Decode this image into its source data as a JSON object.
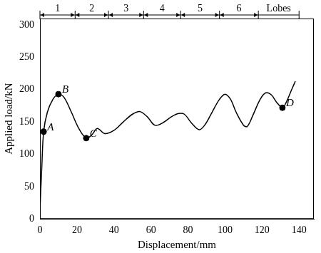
{
  "chart_data": {
    "type": "line",
    "x_label": "Displacement/mm",
    "y_label": "Applied load/kN",
    "x": [
      0,
      1,
      2,
      4,
      7,
      10,
      13,
      17,
      21,
      25,
      28,
      31,
      35,
      40,
      45,
      50,
      54,
      58,
      62,
      66,
      71,
      75,
      78,
      82,
      86,
      89,
      93,
      97,
      100,
      103,
      106,
      110,
      112,
      115,
      119,
      122,
      125,
      128,
      131,
      133,
      136,
      138
    ],
    "values": [
      15,
      80,
      135,
      165,
      185,
      193,
      188,
      165,
      140,
      125,
      130,
      140,
      132,
      137,
      150,
      162,
      166,
      158,
      145,
      148,
      158,
      163,
      162,
      148,
      138,
      145,
      165,
      185,
      193,
      185,
      165,
      145,
      143,
      160,
      185,
      195,
      192,
      180,
      172,
      180,
      200,
      213
    ],
    "color": "#000000",
    "xlim": [
      0,
      148
    ],
    "xticks": [
      0,
      20,
      40,
      60,
      80,
      100,
      120,
      140
    ],
    "ylim": [
      0,
      310
    ],
    "yticks": [
      0,
      50,
      100,
      150,
      200,
      250,
      300
    ],
    "grid": false,
    "points": [
      {
        "label": "A",
        "x": 2,
        "y": 135
      },
      {
        "label": "B",
        "x": 10,
        "y": 193
      },
      {
        "label": "C",
        "x": 25,
        "y": 125
      },
      {
        "label": "D",
        "x": 131,
        "y": 172
      }
    ],
    "lobes": {
      "title": "Lobes",
      "labels": [
        "1",
        "2",
        "3",
        "4",
        "5",
        "6"
      ],
      "boundaries": [
        0,
        19,
        37,
        56,
        76,
        97,
        118,
        140
      ]
    }
  }
}
